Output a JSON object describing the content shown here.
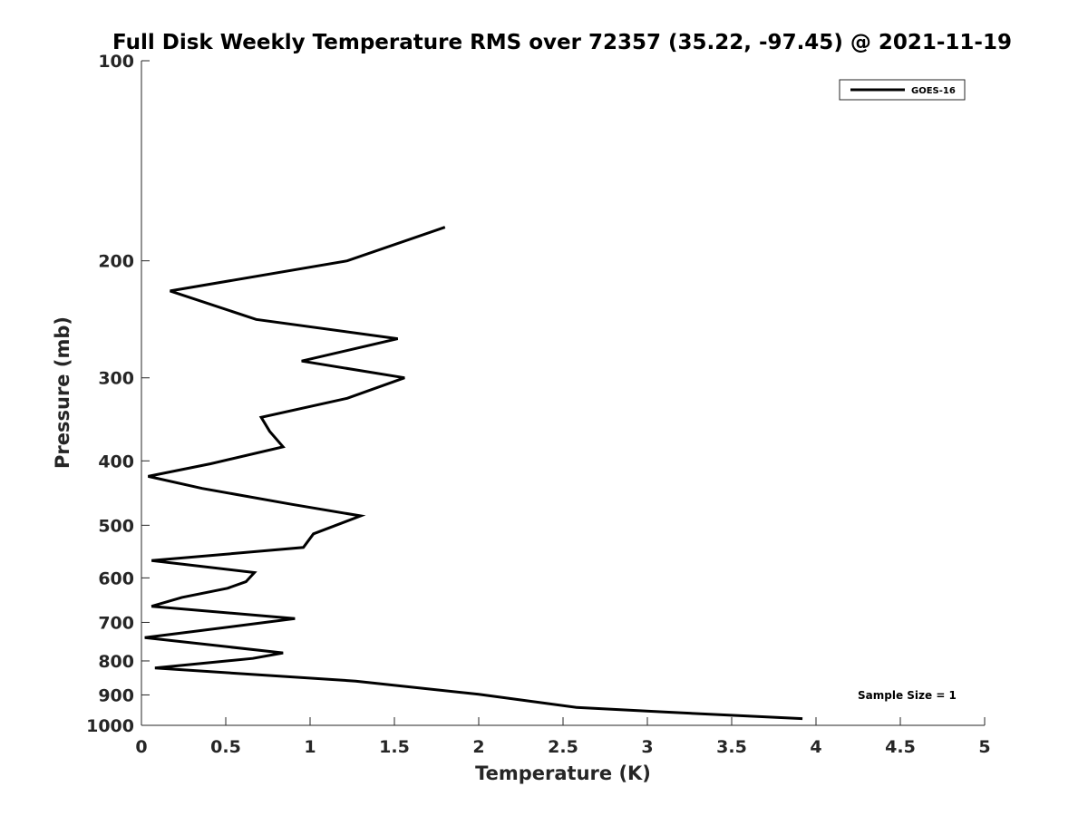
{
  "chart_data": {
    "type": "line",
    "title": "Full Disk Weekly Temperature RMS over 72357 (35.22, -97.45) @ 2021-11-19",
    "xlabel": "Temperature (K)",
    "ylabel": "Pressure (mb)",
    "xlim": [
      0,
      5
    ],
    "ylim": [
      100,
      1000
    ],
    "y_scale": "log",
    "y_reversed": true,
    "x_ticks": [
      "0",
      "0.5",
      "1",
      "1.5",
      "2",
      "2.5",
      "3",
      "3.5",
      "4",
      "4.5",
      "5"
    ],
    "y_ticks": [
      "100",
      "200",
      "300",
      "400",
      "500",
      "600",
      "700",
      "800",
      "900",
      "1000"
    ],
    "grid": false,
    "legend_position": "top-right",
    "annotation": "Sample Size = 1",
    "series": [
      {
        "name": "GOES-16",
        "color": "#000000",
        "x": [
          1.8,
          1.22,
          0.17,
          0.68,
          1.52,
          0.95,
          1.56,
          1.22,
          0.71,
          0.76,
          0.84,
          0.41,
          0.04,
          0.36,
          0.89,
          1.3,
          1.02,
          0.96,
          0.06,
          0.67,
          0.62,
          0.51,
          0.24,
          0.06,
          0.91,
          0.02,
          0.84,
          0.66,
          0.08,
          1.27,
          2.0,
          2.58,
          3.1,
          3.92
        ],
        "y": [
          178,
          200,
          222,
          245,
          262,
          283,
          300,
          322,
          344,
          361,
          381,
          404,
          422,
          440,
          465,
          484,
          515,
          540,
          565,
          589,
          608,
          622,
          642,
          662,
          691,
          738,
          778,
          793,
          820,
          858,
          898,
          940,
          955,
          977
        ]
      }
    ]
  }
}
